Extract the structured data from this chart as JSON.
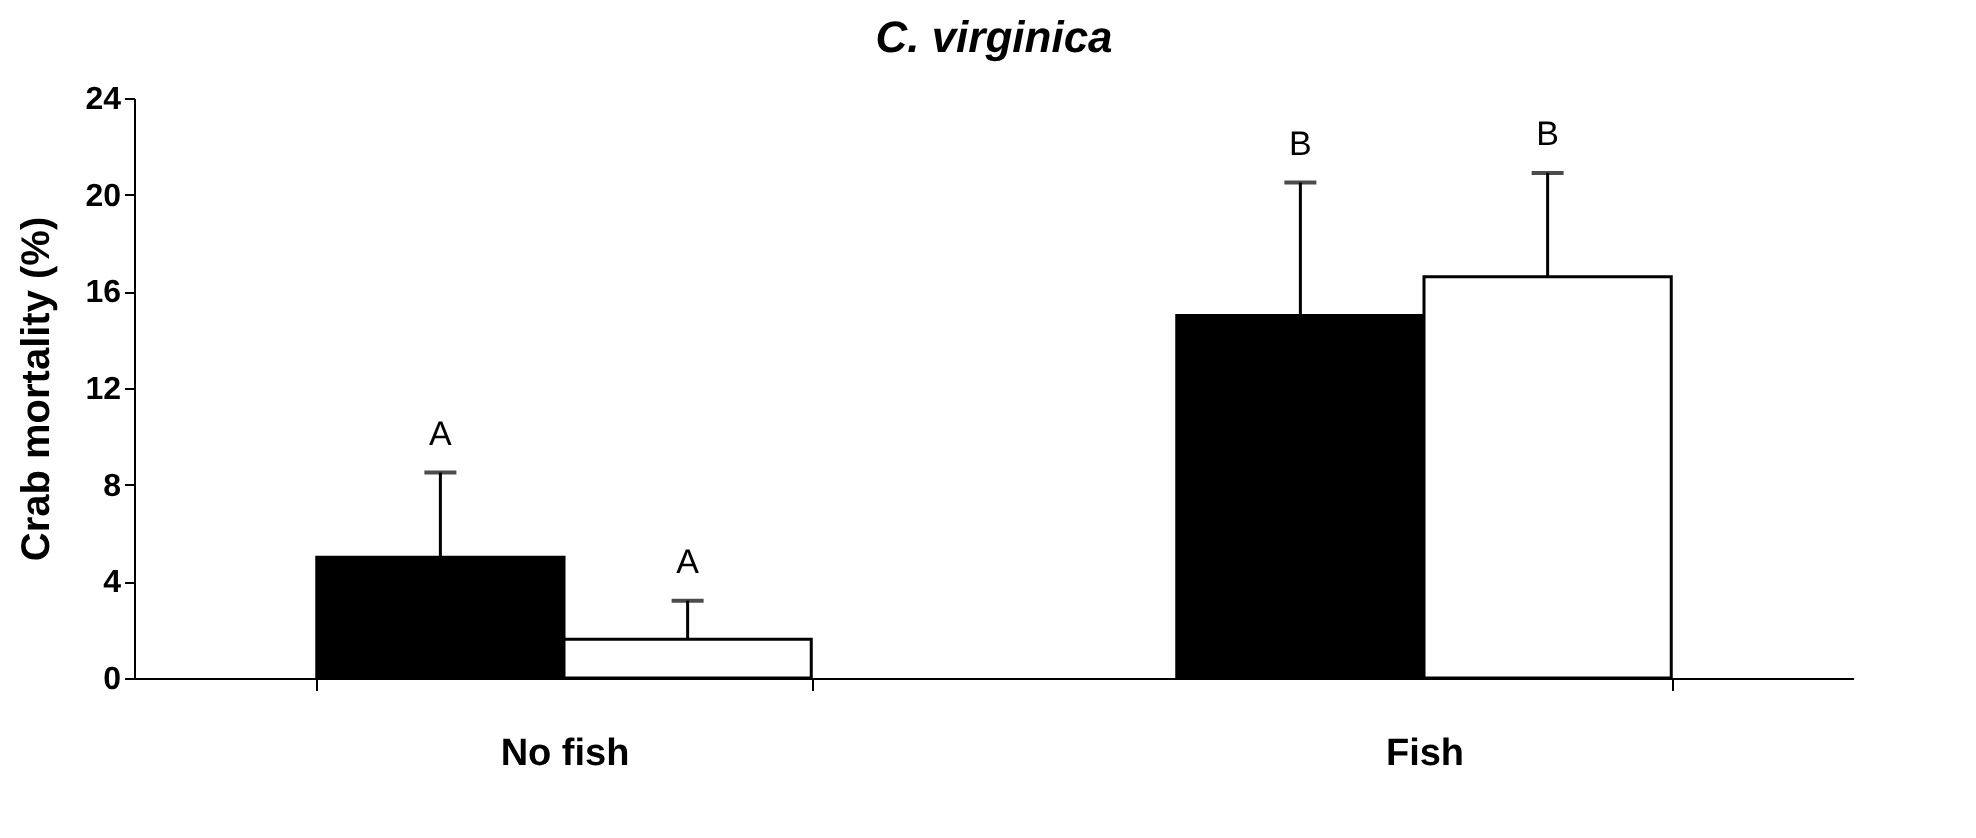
{
  "chart_data": {
    "type": "bar",
    "title": "C. virginica",
    "ylabel": "Crab mortality (%)",
    "categories": [
      "No fish",
      "Fish"
    ],
    "series": [
      {
        "color": "#000000",
        "values": [
          5.0,
          15.0
        ],
        "errors": [
          [
            5.0,
            8.5
          ],
          [
            15.0,
            20.5
          ]
        ]
      },
      {
        "color": "#ffffff",
        "values": [
          1.6,
          16.6
        ],
        "errors": [
          [
            1.6,
            3.2
          ],
          [
            16.6,
            20.9
          ]
        ]
      }
    ],
    "ylim": [
      0,
      24
    ],
    "yticks": [
      0,
      4,
      8,
      12,
      16,
      20,
      24
    ],
    "grid": false,
    "annotations": [
      "A",
      "A",
      "B",
      "B"
    ]
  }
}
